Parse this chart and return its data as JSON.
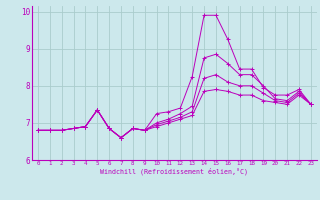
{
  "xlabel": "Windchill (Refroidissement éolien,°C)",
  "background_color": "#cce8ec",
  "grid_color": "#aacccc",
  "line_color": "#bb00bb",
  "xlim": [
    -0.5,
    23.5
  ],
  "ylim": [
    6,
    10.15
  ],
  "xticks": [
    0,
    1,
    2,
    3,
    4,
    5,
    6,
    7,
    8,
    9,
    10,
    11,
    12,
    13,
    14,
    15,
    16,
    17,
    18,
    19,
    20,
    21,
    22,
    23
  ],
  "yticks": [
    6,
    7,
    8,
    9,
    10
  ],
  "series": [
    [
      6.8,
      6.8,
      6.8,
      6.85,
      6.9,
      7.35,
      6.85,
      6.6,
      6.85,
      6.8,
      7.25,
      7.3,
      7.4,
      8.25,
      9.9,
      9.9,
      9.25,
      8.45,
      8.45,
      7.95,
      7.75,
      7.75,
      7.9,
      7.5
    ],
    [
      6.8,
      6.8,
      6.8,
      6.85,
      6.9,
      7.35,
      6.85,
      6.6,
      6.85,
      6.8,
      7.0,
      7.1,
      7.25,
      7.45,
      8.75,
      8.85,
      8.6,
      8.3,
      8.3,
      8.0,
      7.65,
      7.6,
      7.85,
      7.5
    ],
    [
      6.8,
      6.8,
      6.8,
      6.85,
      6.9,
      7.35,
      6.85,
      6.6,
      6.85,
      6.8,
      6.95,
      7.05,
      7.15,
      7.3,
      8.2,
      8.3,
      8.1,
      8.0,
      8.0,
      7.8,
      7.6,
      7.55,
      7.8,
      7.5
    ],
    [
      6.8,
      6.8,
      6.8,
      6.85,
      6.9,
      7.35,
      6.85,
      6.6,
      6.85,
      6.8,
      6.9,
      7.0,
      7.1,
      7.2,
      7.85,
      7.9,
      7.85,
      7.75,
      7.75,
      7.6,
      7.55,
      7.5,
      7.75,
      7.5
    ]
  ]
}
